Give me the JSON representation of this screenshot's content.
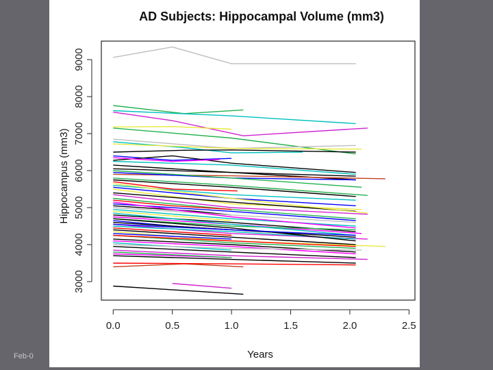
{
  "footer": {
    "text": "Feb-0"
  },
  "colors": {
    "background": "#66656b",
    "panel": "#ffffff"
  },
  "chart_data": {
    "type": "line",
    "title": "AD Subjects: Hippocampal Volume (mm3)",
    "xlabel": "Years",
    "ylabel": "Hippocampus (mm3)",
    "xlim": [
      -0.1,
      2.55
    ],
    "ylim": [
      2500,
      9500
    ],
    "xticks": [
      0.0,
      0.5,
      1.0,
      1.5,
      2.0,
      2.5
    ],
    "xtick_labels": [
      "0.0",
      "0.5",
      "1.0",
      "1.5",
      "2.0",
      "2.5"
    ],
    "yticks": [
      3000,
      4000,
      5000,
      6000,
      7000,
      8000,
      9000
    ],
    "ytick_labels": [
      "3000",
      "4000",
      "5000",
      "6000",
      "7000",
      "8000",
      "9000"
    ],
    "grid": false,
    "legend": "none",
    "series": [
      {
        "color": "#bdbdbd",
        "x": [
          0,
          0.5,
          1.0,
          2.05
        ],
        "y": [
          9060,
          9340,
          8890,
          8890
        ]
      },
      {
        "color": "#22b14c",
        "x": [
          0,
          0.6,
          1.1
        ],
        "y": [
          7760,
          7540,
          7640
        ]
      },
      {
        "color": "#00c0c0",
        "x": [
          0,
          1.0,
          2.05
        ],
        "y": [
          7620,
          7480,
          7270
        ]
      },
      {
        "color": "#d020d0",
        "x": [
          0,
          0.5,
          1.1,
          2.15
        ],
        "y": [
          7580,
          7350,
          6940,
          7150
        ]
      },
      {
        "color": "#e8e840",
        "x": [
          0,
          0.5,
          1.0
        ],
        "y": [
          7180,
          7190,
          7120
        ]
      },
      {
        "color": "#22b14c",
        "x": [
          0,
          1.0,
          2.05
        ],
        "y": [
          7150,
          6880,
          6450
        ]
      },
      {
        "color": "#bdbdbd",
        "x": [
          0,
          1.0,
          2.05
        ],
        "y": [
          6850,
          6600,
          6680
        ]
      },
      {
        "color": "#00c0c0",
        "x": [
          0,
          0.6,
          1.0,
          1.6
        ],
        "y": [
          6780,
          6620,
          6480,
          6500
        ]
      },
      {
        "color": "#000000",
        "x": [
          0,
          0.6,
          1.0,
          2.05
        ],
        "y": [
          6500,
          6550,
          6560,
          6500
        ]
      },
      {
        "color": "#e8e840",
        "x": [
          0,
          1.0,
          2.1
        ],
        "y": [
          6720,
          6600,
          6580
        ]
      },
      {
        "color": "#0000ff",
        "x": [
          0,
          0.5,
          1.0
        ],
        "y": [
          6400,
          6280,
          6330
        ]
      },
      {
        "color": "#000000",
        "x": [
          0,
          0.5,
          1.0,
          2.05
        ],
        "y": [
          6280,
          6400,
          6200,
          5950
        ]
      },
      {
        "color": "#ff00ff",
        "x": [
          0,
          0.5,
          0.9
        ],
        "y": [
          6350,
          6250,
          6300
        ]
      },
      {
        "color": "#00c0c0",
        "x": [
          0,
          1.0,
          2.05
        ],
        "y": [
          6250,
          6150,
          5900
        ]
      },
      {
        "color": "#000000",
        "x": [
          0,
          1.0,
          2.05
        ],
        "y": [
          6050,
          5950,
          5750
        ]
      },
      {
        "color": "#c04020",
        "x": [
          0,
          1.0,
          2.3
        ],
        "y": [
          5900,
          5860,
          5780
        ]
      },
      {
        "color": "#22b14c",
        "x": [
          0,
          1.0,
          2.15
        ],
        "y": [
          5800,
          5600,
          5330
        ]
      },
      {
        "color": "#0000ff",
        "x": [
          0,
          1.0,
          2.05
        ],
        "y": [
          5950,
          5800,
          5750
        ]
      },
      {
        "color": "#000000",
        "x": [
          0,
          1.0,
          2.05
        ],
        "y": [
          5750,
          5550,
          5300
        ]
      },
      {
        "color": "#ff0000",
        "x": [
          0,
          0.5,
          1.05
        ],
        "y": [
          5700,
          5500,
          5450
        ]
      },
      {
        "color": "#00c0c0",
        "x": [
          0,
          1.0,
          2.05
        ],
        "y": [
          5600,
          5350,
          5200
        ]
      },
      {
        "color": "#e8e840",
        "x": [
          0,
          1.0,
          2.1
        ],
        "y": [
          5500,
          5100,
          4950
        ]
      },
      {
        "color": "#000000",
        "x": [
          0,
          1.0,
          2.05
        ],
        "y": [
          5400,
          5150,
          4900
        ]
      },
      {
        "color": "#d020d0",
        "x": [
          0,
          1.0,
          2.15
        ],
        "y": [
          5350,
          5000,
          4820
        ]
      },
      {
        "color": "#22b14c",
        "x": [
          0,
          1.0,
          2.05
        ],
        "y": [
          5250,
          4950,
          4700
        ]
      },
      {
        "color": "#ff0000",
        "x": [
          0,
          0.5,
          1.0
        ],
        "y": [
          5200,
          5050,
          4950
        ]
      },
      {
        "color": "#0000ff",
        "x": [
          0,
          1.0,
          2.05
        ],
        "y": [
          5100,
          4900,
          4650
        ]
      },
      {
        "color": "#000000",
        "x": [
          0,
          0.7,
          1.0
        ],
        "y": [
          5050,
          4900,
          4800
        ]
      },
      {
        "color": "#bdbdbd",
        "x": [
          0,
          1.0,
          2.05
        ],
        "y": [
          5000,
          4800,
          4600
        ]
      },
      {
        "color": "#00c0c0",
        "x": [
          0,
          1.0,
          2.05
        ],
        "y": [
          4950,
          4700,
          4500
        ]
      },
      {
        "color": "#e8e840",
        "x": [
          0,
          1.0
        ],
        "y": [
          4900,
          4650
        ]
      },
      {
        "color": "#000000",
        "x": [
          0,
          1.0,
          2.05
        ],
        "y": [
          4800,
          4600,
          4350
        ]
      },
      {
        "color": "#ff00ff",
        "x": [
          0,
          1.0,
          2.1
        ],
        "y": [
          4750,
          4550,
          4300
        ]
      },
      {
        "color": "#22b14c",
        "x": [
          0,
          1.0,
          2.05
        ],
        "y": [
          4700,
          4500,
          4400
        ]
      },
      {
        "color": "#0000ff",
        "x": [
          0,
          0.5,
          1.0
        ],
        "y": [
          4650,
          4500,
          4400
        ]
      },
      {
        "color": "#000000",
        "x": [
          0,
          1.0,
          2.05
        ],
        "y": [
          4600,
          4400,
          4200
        ]
      },
      {
        "color": "#d020d0",
        "x": [
          0,
          1.0,
          2.15
        ],
        "y": [
          4550,
          4300,
          4150
        ]
      },
      {
        "color": "#00c0c0",
        "x": [
          0,
          1.0,
          2.05
        ],
        "y": [
          4500,
          4350,
          4150
        ]
      },
      {
        "color": "#ff0000",
        "x": [
          0,
          1.0
        ],
        "y": [
          4450,
          4250
        ]
      },
      {
        "color": "#000000",
        "x": [
          0,
          1.0,
          2.05
        ],
        "y": [
          4400,
          4200,
          4000
        ]
      },
      {
        "color": "#e8e840",
        "x": [
          0,
          1.0,
          2.3
        ],
        "y": [
          4350,
          4100,
          3950
        ]
      },
      {
        "color": "#0000ff",
        "x": [
          0,
          1.0
        ],
        "y": [
          4300,
          4150
        ]
      },
      {
        "color": "#22b14c",
        "x": [
          0,
          1.0,
          2.05
        ],
        "y": [
          4250,
          4050,
          3900
        ]
      },
      {
        "color": "#000000",
        "x": [
          0,
          1.0,
          2.05
        ],
        "y": [
          4150,
          4000,
          3800
        ]
      },
      {
        "color": "#ff00ff",
        "x": [
          0,
          1.0,
          2.05
        ],
        "y": [
          4100,
          3950,
          3750
        ]
      },
      {
        "color": "#00c0c0",
        "x": [
          0,
          1.0
        ],
        "y": [
          4050,
          3850
        ]
      },
      {
        "color": "#bdbdbd",
        "x": [
          0,
          1.0,
          2.1
        ],
        "y": [
          4000,
          3900,
          3850
        ]
      },
      {
        "color": "#000000",
        "x": [
          0,
          1.0,
          2.05
        ],
        "y": [
          3950,
          3800,
          3650
        ]
      },
      {
        "color": "#d020d0",
        "x": [
          0,
          1.0,
          2.15
        ],
        "y": [
          3850,
          3700,
          3600
        ]
      },
      {
        "color": "#ff00ff",
        "x": [
          0,
          0.5,
          1.0
        ],
        "y": [
          3750,
          3700,
          3650
        ]
      },
      {
        "color": "#22b14c",
        "x": [
          0,
          1.0
        ],
        "y": [
          3800,
          3650
        ]
      },
      {
        "color": "#000000",
        "x": [
          0,
          1.0,
          2.05
        ],
        "y": [
          3700,
          3600,
          3500
        ]
      },
      {
        "color": "#c04020",
        "x": [
          0,
          0.6,
          1.1
        ],
        "y": [
          3400,
          3480,
          3400
        ]
      },
      {
        "color": "#ff0000",
        "x": [
          0,
          1.0,
          2.05
        ],
        "y": [
          3500,
          3480,
          3450
        ]
      },
      {
        "color": "#d020d0",
        "x": [
          0.5,
          1.0
        ],
        "y": [
          2950,
          2820
        ]
      },
      {
        "color": "#000000",
        "x": [
          0,
          0.5,
          1.1
        ],
        "y": [
          2880,
          2780,
          2660
        ]
      },
      {
        "color": "#ff00ff",
        "x": [
          0,
          1.0,
          2.05
        ],
        "y": [
          5150,
          4750,
          4450
        ]
      },
      {
        "color": "#0000ff",
        "x": [
          0,
          1.0,
          2.05
        ],
        "y": [
          5550,
          5250,
          5050
        ]
      },
      {
        "color": "#000000",
        "x": [
          0,
          1.0,
          2.05
        ],
        "y": [
          6150,
          5950,
          5850
        ]
      },
      {
        "color": "#22b14c",
        "x": [
          0,
          1.0,
          2.1
        ],
        "y": [
          6000,
          5800,
          5550
        ]
      },
      {
        "color": "#00c0c0",
        "x": [
          0,
          1.0,
          2.05
        ],
        "y": [
          4850,
          4550,
          4250
        ]
      },
      {
        "color": "#e8e840",
        "x": [
          0,
          1.0,
          2.15
        ],
        "y": [
          5650,
          5250,
          4850
        ]
      },
      {
        "color": "#000000",
        "x": [
          0,
          1.0,
          2.05
        ],
        "y": [
          4700,
          4450,
          4100
        ]
      },
      {
        "color": "#ff0000",
        "x": [
          0,
          1.0,
          2.05
        ],
        "y": [
          4250,
          4100,
          3950
        ]
      },
      {
        "color": "#0000ff",
        "x": [
          0,
          1.0,
          2.05
        ],
        "y": [
          4550,
          4400,
          4250
        ]
      }
    ]
  }
}
